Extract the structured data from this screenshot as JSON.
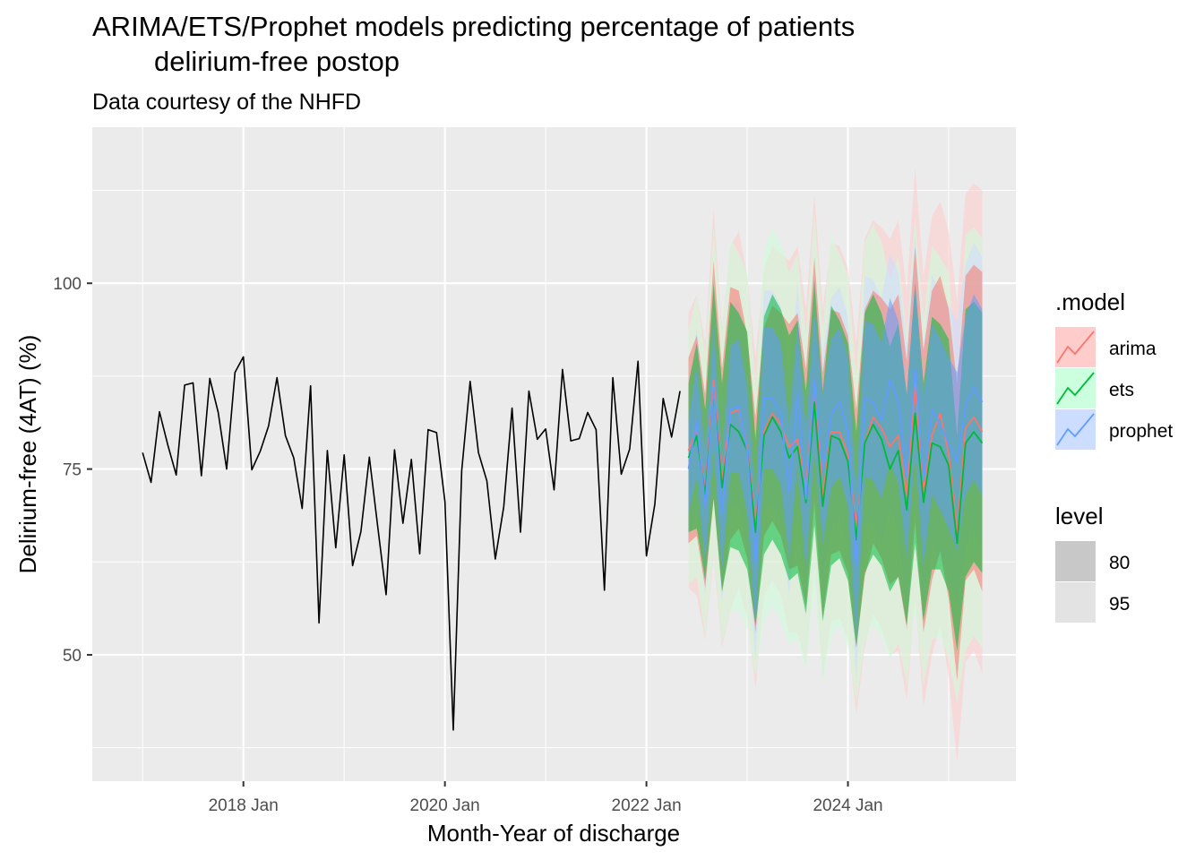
{
  "chart_data": {
    "type": "line",
    "title_lines": [
      "ARIMA/ETS/Prophet models predicting percentage of  patients",
      "delirium-free postop"
    ],
    "subtitle": "Data courtesy of the NHFD",
    "xlabel": "Month-Year of discharge",
    "ylabel": "Delirium-free (4AT) (%)",
    "x_ticks": [
      "2018-01",
      "2020-01",
      "2022-01",
      "2024-01"
    ],
    "x_tick_labels": [
      "2018 Jan",
      "2020 Jan",
      "2022 Jan",
      "2024 Jan"
    ],
    "y_ticks": [
      50,
      75,
      100
    ],
    "y_tick_labels": [
      "50",
      "75",
      "100"
    ],
    "xlim": [
      "2016-07",
      "2025-09"
    ],
    "ylim": [
      33,
      121
    ],
    "grid": true,
    "legend_placement": "right",
    "history": {
      "start": "2017-01",
      "values": [
        77.2,
        73.2,
        82.7,
        78.2,
        74.2,
        86.3,
        86.6,
        74.1,
        87.2,
        82.6,
        75.0,
        88.0,
        90.1,
        74.9,
        77.4,
        80.8,
        87.3,
        79.5,
        76.5,
        69.7,
        86.2,
        54.3,
        77.5,
        64.4,
        76.9,
        62.0,
        66.6,
        76.6,
        67.2,
        58.1,
        77.6,
        67.7,
        76.3,
        63.6,
        80.3,
        79.9,
        70.6,
        39.9,
        74.8,
        86.8,
        77.2,
        73.4,
        62.9,
        69.9,
        83.2,
        66.5,
        85.5,
        79.0,
        80.4,
        72.2,
        88.4,
        78.8,
        79.1,
        82.6,
        80.3,
        58.7,
        87.3,
        74.3,
        77.7,
        89.5,
        63.3,
        70.3,
        84.5,
        79.3,
        85.5
      ]
    },
    "forecast": {
      "start": "2022-06",
      "periods": 36,
      "series": [
        {
          "name": "arima",
          "color": "#F8766D",
          "fill": "#FFCCCC",
          "mean": [
            77.5,
            80.5,
            72.0,
            87.0,
            73.5,
            82.5,
            83.0,
            78.0,
            67.5,
            80.0,
            82.5,
            81.0,
            78.0,
            79.0,
            72.5,
            87.0,
            71.5,
            80.0,
            80.0,
            77.0,
            67.0,
            78.5,
            82.0,
            80.5,
            78.0,
            79.5,
            71.5,
            86.5,
            72.0,
            79.5,
            82.5,
            77.0,
            66.5,
            80.5,
            82.0,
            80.0
          ],
          "lo95": [
            59.0,
            58.0,
            52.0,
            63.0,
            51.0,
            56.0,
            59.0,
            55.0,
            45.5,
            58.0,
            60.0,
            58.0,
            53.0,
            53.0,
            48.5,
            62.0,
            46.5,
            54.5,
            55.0,
            52.0,
            42.0,
            51.0,
            55.5,
            53.5,
            50.0,
            50.5,
            44.0,
            57.5,
            43.0,
            50.0,
            54.0,
            47.0,
            35.5,
            49.0,
            50.5,
            47.5
          ],
          "hi95": [
            96.0,
            98.5,
            92.0,
            110.0,
            94.0,
            105.0,
            107.0,
            101.0,
            90.0,
            102.0,
            105.0,
            104.0,
            103.0,
            105.0,
            96.5,
            112.0,
            96.5,
            105.5,
            105.0,
            102.0,
            92.0,
            106.0,
            108.5,
            107.5,
            106.0,
            108.5,
            99.0,
            115.5,
            101.0,
            109.0,
            111.0,
            107.0,
            97.5,
            112.0,
            113.5,
            112.5
          ],
          "lo80": [
            65.0,
            66.0,
            59.0,
            71.0,
            58.5,
            65.5,
            67.0,
            63.0,
            53.0,
            66.0,
            68.0,
            66.0,
            61.5,
            62.0,
            56.5,
            70.5,
            55.0,
            63.5,
            64.0,
            61.0,
            51.0,
            60.5,
            65.0,
            63.0,
            59.5,
            60.5,
            53.5,
            68.0,
            53.0,
            60.0,
            64.0,
            57.5,
            46.5,
            60.0,
            61.5,
            58.5
          ],
          "hi80": [
            90.0,
            93.0,
            85.0,
            103.0,
            88.5,
            99.5,
            99.0,
            93.0,
            82.0,
            94.0,
            97.0,
            96.0,
            94.5,
            96.0,
            88.5,
            103.5,
            88.0,
            96.5,
            96.0,
            93.0,
            83.0,
            96.5,
            99.0,
            98.0,
            96.5,
            98.5,
            89.5,
            105.0,
            91.0,
            99.0,
            101.0,
            96.5,
            86.5,
            101.0,
            102.5,
            101.5
          ]
        },
        {
          "name": "ets",
          "color": "#00BA38",
          "fill": "#CCFFDD",
          "mean": [
            76.5,
            79.5,
            71.5,
            85.5,
            72.5,
            81.0,
            80.0,
            77.5,
            66.5,
            79.5,
            82.0,
            80.0,
            76.5,
            78.0,
            70.5,
            84.0,
            70.0,
            79.5,
            79.0,
            76.0,
            65.5,
            78.5,
            81.0,
            79.0,
            75.0,
            77.5,
            69.5,
            82.5,
            70.5,
            78.5,
            78.0,
            75.5,
            65.0,
            78.5,
            80.0,
            78.5
          ],
          "lo95": [
            59.5,
            60.5,
            52.5,
            63.5,
            51.5,
            56.0,
            56.0,
            53.5,
            47.0,
            54.5,
            56.5,
            54.5,
            51.5,
            52.0,
            48.0,
            58.5,
            46.0,
            52.5,
            54.0,
            51.0,
            43.5,
            51.5,
            54.0,
            52.5,
            49.5,
            51.5,
            46.0,
            56.0,
            46.0,
            52.0,
            52.5,
            49.5,
            43.5,
            50.5,
            52.5,
            51.0
          ],
          "hi95": [
            93.5,
            98.5,
            90.5,
            107.5,
            93.5,
            106.0,
            104.0,
            101.5,
            86.0,
            104.5,
            107.5,
            105.5,
            101.5,
            104.0,
            93.0,
            109.5,
            94.0,
            106.5,
            104.0,
            101.0,
            87.5,
            105.5,
            108.0,
            105.5,
            100.5,
            103.5,
            93.0,
            109.0,
            95.0,
            105.0,
            103.5,
            101.5,
            86.5,
            106.5,
            107.5,
            106.0
          ],
          "lo80": [
            66.5,
            67.0,
            60.0,
            71.0,
            58.5,
            64.5,
            64.0,
            61.5,
            54.0,
            63.5,
            65.5,
            63.5,
            60.0,
            61.0,
            55.5,
            67.5,
            54.5,
            62.0,
            63.0,
            60.0,
            51.0,
            61.0,
            63.5,
            62.0,
            58.5,
            60.5,
            54.0,
            65.0,
            54.5,
            61.5,
            61.5,
            58.5,
            50.5,
            60.5,
            62.5,
            61.0
          ],
          "hi80": [
            86.5,
            92.0,
            83.0,
            100.0,
            86.5,
            97.5,
            96.0,
            93.5,
            79.0,
            95.5,
            98.5,
            96.5,
            93.0,
            95.0,
            85.5,
            100.5,
            85.5,
            97.0,
            95.0,
            92.0,
            80.0,
            96.0,
            98.5,
            96.0,
            91.5,
            94.5,
            85.0,
            100.0,
            86.5,
            95.5,
            94.5,
            92.5,
            79.5,
            96.5,
            97.5,
            96.0
          ]
        },
        {
          "name": "prophet",
          "color": "#619CFF",
          "fill": "#CCDDFF",
          "mean": [
            75.0,
            81.5,
            70.0,
            86.0,
            69.0,
            83.0,
            83.5,
            77.5,
            62.5,
            84.5,
            84.5,
            82.5,
            72.0,
            85.0,
            71.0,
            87.0,
            75.0,
            82.5,
            84.0,
            80.0,
            62.0,
            84.5,
            84.0,
            81.5,
            87.0,
            84.0,
            74.0,
            88.5,
            73.5,
            83.0,
            81.0,
            78.5,
            76.0,
            83.5,
            86.0,
            84.0
          ],
          "lo95": [
            65.5,
            69.5,
            58.0,
            72.5,
            57.0,
            70.0,
            70.0,
            64.0,
            49.0,
            70.0,
            70.0,
            68.0,
            58.0,
            70.0,
            56.5,
            72.0,
            60.0,
            67.0,
            68.5,
            64.5,
            46.5,
            68.0,
            67.5,
            65.0,
            70.0,
            66.5,
            56.5,
            70.5,
            55.5,
            65.0,
            63.0,
            60.0,
            57.0,
            64.5,
            66.5,
            64.5
          ],
          "hi95": [
            85.0,
            94.0,
            83.0,
            100.0,
            82.0,
            97.0,
            97.5,
            91.5,
            76.5,
            99.0,
            99.0,
            97.0,
            86.5,
            100.0,
            86.0,
            102.0,
            90.5,
            98.0,
            99.5,
            95.5,
            77.5,
            101.0,
            100.5,
            98.0,
            104.0,
            101.5,
            91.5,
            106.5,
            91.5,
            101.0,
            99.0,
            97.0,
            95.0,
            102.5,
            105.5,
            103.5
          ],
          "lo80": [
            69.0,
            74.0,
            62.5,
            77.5,
            61.5,
            74.5,
            74.5,
            69.0,
            54.0,
            75.0,
            75.0,
            73.0,
            63.0,
            75.5,
            61.5,
            77.5,
            65.0,
            72.5,
            74.0,
            70.0,
            52.0,
            74.0,
            73.5,
            71.0,
            76.0,
            73.0,
            63.0,
            77.0,
            62.0,
            71.5,
            69.5,
            67.0,
            64.0,
            71.5,
            73.5,
            71.5
          ],
          "hi80": [
            81.5,
            89.0,
            77.5,
            94.5,
            76.5,
            91.5,
            92.5,
            86.0,
            71.0,
            94.0,
            94.0,
            92.0,
            81.0,
            94.5,
            80.5,
            96.5,
            85.0,
            92.5,
            94.0,
            90.0,
            72.0,
            95.0,
            94.5,
            92.0,
            98.0,
            95.0,
            85.0,
            100.0,
            85.0,
            94.5,
            92.5,
            90.0,
            88.0,
            95.5,
            98.5,
            96.5
          ]
        }
      ]
    },
    "legend": {
      "model_title": ".model",
      "model_entries": [
        "arima",
        "ets",
        "prophet"
      ],
      "level_title": "level",
      "level_entries": [
        "80",
        "95"
      ]
    }
  }
}
